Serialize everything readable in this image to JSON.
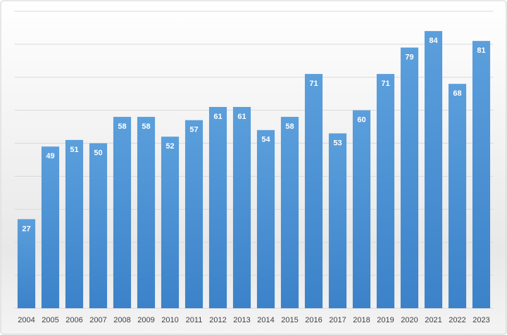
{
  "chart_data": {
    "type": "bar",
    "categories": [
      "2004",
      "2005",
      "2006",
      "2007",
      "2008",
      "2009",
      "2010",
      "2011",
      "2012",
      "2013",
      "2014",
      "2015",
      "2016",
      "2017",
      "2018",
      "2019",
      "2020",
      "2021",
      "2022",
      "2023"
    ],
    "values": [
      27,
      49,
      51,
      50,
      58,
      58,
      52,
      57,
      61,
      61,
      54,
      58,
      71,
      53,
      60,
      71,
      79,
      84,
      68,
      81
    ],
    "color": "#4a8fd4",
    "ylim": [
      0,
      90
    ],
    "yticks": [
      0,
      10,
      20,
      30,
      40,
      50,
      60,
      70,
      80,
      90
    ],
    "grid": true
  }
}
